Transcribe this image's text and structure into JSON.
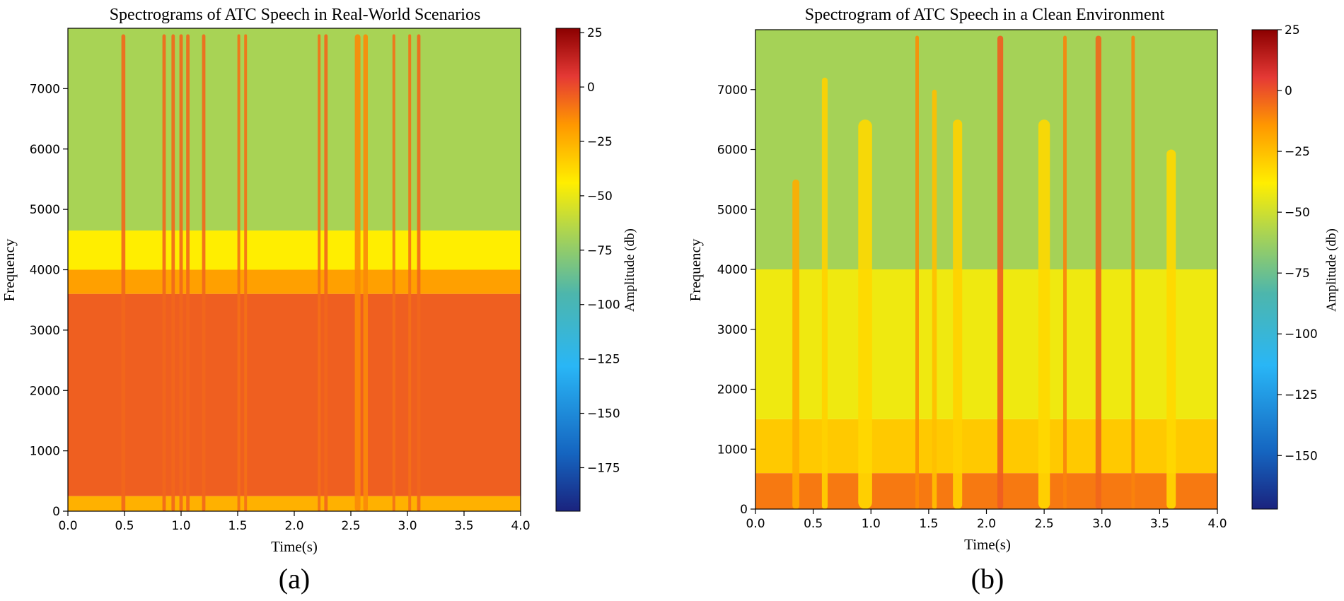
{
  "chart_data": [
    {
      "type": "heatmap",
      "panel_label": "(a)",
      "title": "Spectrograms of ATC Speech in Real-World Scenarios",
      "xlabel": "Time(s)",
      "ylabel": "Frequency",
      "xlim": [
        0.0,
        4.0
      ],
      "ylim": [
        0,
        8000
      ],
      "xticks": [
        0.0,
        0.5,
        1.0,
        1.5,
        2.0,
        2.5,
        3.0,
        3.5,
        4.0
      ],
      "xtick_labels": [
        "0.0",
        "0.5",
        "1.0",
        "1.5",
        "2.0",
        "2.5",
        "3.0",
        "3.5",
        "4.0"
      ],
      "yticks": [
        0,
        1000,
        2000,
        3000,
        4000,
        5000,
        6000,
        7000
      ],
      "ytick_labels": [
        "0",
        "1000",
        "2000",
        "3000",
        "4000",
        "5000",
        "6000",
        "7000"
      ],
      "colorbar": {
        "label": "Amplitude (db)",
        "range": [
          -195,
          27
        ],
        "ticks": [
          25,
          0,
          -25,
          -50,
          -75,
          -100,
          -125,
          -150,
          -175
        ],
        "tick_labels": [
          "25",
          "0",
          "−25",
          "−50",
          "−75",
          "−100",
          "−125",
          "−150",
          "−175"
        ]
      },
      "bands": [
        {
          "f0": 0,
          "f1": 250,
          "amp": -25
        },
        {
          "f0": 250,
          "f1": 3600,
          "amp": -4
        },
        {
          "f0": 3600,
          "f1": 4000,
          "amp": -20
        },
        {
          "f0": 4000,
          "f1": 4650,
          "amp": -44
        },
        {
          "f0": 4650,
          "f1": 8000,
          "amp": -68
        }
      ],
      "bursts": [
        {
          "t": 0.49,
          "w": 0.035,
          "fmax": 7900,
          "amp": -6
        },
        {
          "t": 0.85,
          "w": 0.03,
          "fmax": 7900,
          "amp": -6
        },
        {
          "t": 0.93,
          "w": 0.03,
          "fmax": 7900,
          "amp": -6
        },
        {
          "t": 1.0,
          "w": 0.03,
          "fmax": 7900,
          "amp": -6
        },
        {
          "t": 1.06,
          "w": 0.03,
          "fmax": 7900,
          "amp": -6
        },
        {
          "t": 1.2,
          "w": 0.03,
          "fmax": 7900,
          "amp": -6
        },
        {
          "t": 1.51,
          "w": 0.025,
          "fmax": 7900,
          "amp": -8
        },
        {
          "t": 1.57,
          "w": 0.025,
          "fmax": 7900,
          "amp": -8
        },
        {
          "t": 2.22,
          "w": 0.025,
          "fmax": 7900,
          "amp": -8
        },
        {
          "t": 2.28,
          "w": 0.03,
          "fmax": 7900,
          "amp": -6
        },
        {
          "t": 2.56,
          "w": 0.05,
          "fmax": 7900,
          "amp": -14
        },
        {
          "t": 2.63,
          "w": 0.04,
          "fmax": 7900,
          "amp": -14
        },
        {
          "t": 2.88,
          "w": 0.025,
          "fmax": 7900,
          "amp": -8
        },
        {
          "t": 3.02,
          "w": 0.025,
          "fmax": 7900,
          "amp": -8
        },
        {
          "t": 3.1,
          "w": 0.03,
          "fmax": 7900,
          "amp": -6
        }
      ]
    },
    {
      "type": "heatmap",
      "panel_label": "(b)",
      "title": "Spectrogram of ATC Speech in a Clean Environment",
      "xlabel": "Time(s)",
      "ylabel": "Frequency",
      "xlim": [
        0.0,
        4.0
      ],
      "ylim": [
        0,
        8000
      ],
      "xticks": [
        0.0,
        0.5,
        1.0,
        1.5,
        2.0,
        2.5,
        3.0,
        3.5,
        4.0
      ],
      "xtick_labels": [
        "0.0",
        "0.5",
        "1.0",
        "1.5",
        "2.0",
        "2.5",
        "3.0",
        "3.5",
        "4.0"
      ],
      "yticks": [
        0,
        1000,
        2000,
        3000,
        4000,
        5000,
        6000,
        7000
      ],
      "ytick_labels": [
        "0",
        "1000",
        "2000",
        "3000",
        "4000",
        "5000",
        "6000",
        "7000"
      ],
      "colorbar": {
        "label": "Amplitude (db)",
        "range": [
          -172,
          25
        ],
        "ticks": [
          25,
          0,
          -25,
          -50,
          -75,
          -100,
          -125,
          -150
        ],
        "tick_labels": [
          "25",
          "0",
          "−25",
          "−50",
          "−75",
          "−100",
          "−125",
          "−150"
        ]
      },
      "bands": [
        {
          "f0": 0,
          "f1": 600,
          "amp": -8
        },
        {
          "f0": 600,
          "f1": 1500,
          "amp": -28
        },
        {
          "f0": 1500,
          "f1": 4000,
          "amp": -42
        },
        {
          "f0": 4000,
          "f1": 8000,
          "amp": -60
        }
      ],
      "bursts": [
        {
          "t": 0.35,
          "w": 0.06,
          "fmax": 5500,
          "amp": -20
        },
        {
          "t": 0.6,
          "w": 0.05,
          "fmax": 7200,
          "amp": -30
        },
        {
          "t": 0.95,
          "w": 0.12,
          "fmax": 6500,
          "amp": -32
        },
        {
          "t": 1.4,
          "w": 0.03,
          "fmax": 7900,
          "amp": -12
        },
        {
          "t": 1.55,
          "w": 0.04,
          "fmax": 7000,
          "amp": -25
        },
        {
          "t": 1.75,
          "w": 0.08,
          "fmax": 6500,
          "amp": -30
        },
        {
          "t": 2.12,
          "w": 0.05,
          "fmax": 7900,
          "amp": -2
        },
        {
          "t": 2.5,
          "w": 0.1,
          "fmax": 6500,
          "amp": -32
        },
        {
          "t": 2.68,
          "w": 0.03,
          "fmax": 7900,
          "amp": -10
        },
        {
          "t": 2.97,
          "w": 0.05,
          "fmax": 7900,
          "amp": -4
        },
        {
          "t": 3.27,
          "w": 0.03,
          "fmax": 7900,
          "amp": -10
        },
        {
          "t": 3.6,
          "w": 0.08,
          "fmax": 6000,
          "amp": -32
        }
      ]
    }
  ]
}
